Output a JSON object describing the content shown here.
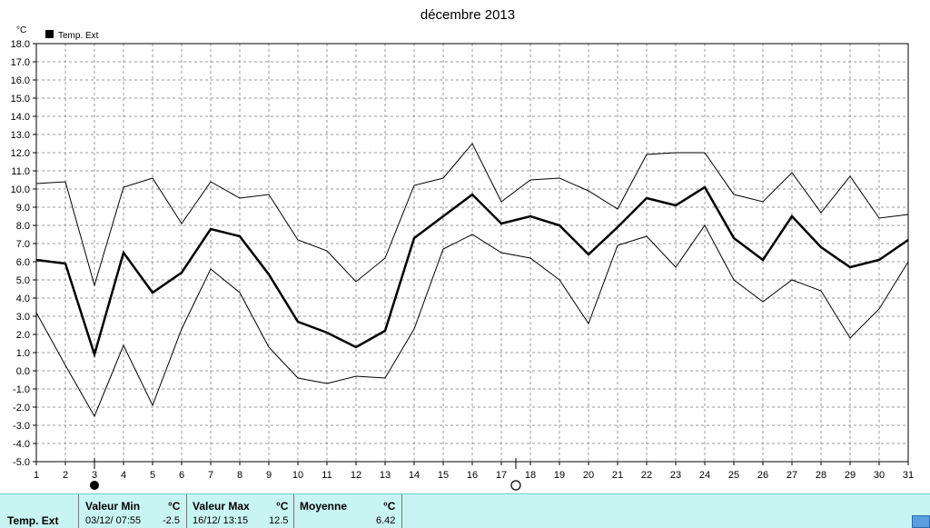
{
  "chart_data": {
    "type": "line",
    "title": "décembre 2013",
    "ylabel": "°C",
    "legend": "Temp. Ext",
    "legend_position": "top-left",
    "grid": true,
    "ylim": [
      -5.0,
      18.0
    ],
    "y_ticks": [
      "18.0",
      "17.0",
      "16.0",
      "15.0",
      "14.0",
      "13.0",
      "12.0",
      "11.0",
      "10.0",
      "9.0",
      "8.0",
      "7.0",
      "6.0",
      "5.0",
      "4.0",
      "3.0",
      "2.0",
      "1.0",
      "0.0",
      "-1.0",
      "-2.0",
      "-3.0",
      "-4.0",
      "-5.0"
    ],
    "x": [
      1,
      2,
      3,
      4,
      5,
      6,
      7,
      8,
      9,
      10,
      11,
      12,
      13,
      14,
      15,
      16,
      17,
      18,
      19,
      20,
      21,
      22,
      23,
      24,
      25,
      26,
      27,
      28,
      29,
      30,
      31
    ],
    "series": [
      {
        "values": [
          10.3,
          10.4,
          4.7,
          10.1,
          10.6,
          8.1,
          10.4,
          9.5,
          9.7,
          7.2,
          6.6,
          4.9,
          6.2,
          10.2,
          10.6,
          12.5,
          9.3,
          10.5,
          10.6,
          9.9,
          8.9,
          11.9,
          12.0,
          12.0,
          9.7,
          9.3,
          10.9,
          8.7,
          10.7,
          8.4,
          8.6
        ],
        "color": "#000000",
        "width": 1
      },
      {
        "values": [
          6.1,
          5.9,
          0.9,
          6.5,
          4.3,
          5.4,
          7.8,
          7.4,
          5.3,
          2.7,
          2.1,
          1.3,
          2.2,
          7.3,
          8.5,
          9.7,
          8.1,
          8.5,
          8.0,
          6.4,
          7.9,
          9.5,
          9.1,
          10.1,
          7.3,
          6.1,
          8.5,
          6.8,
          5.7,
          6.1,
          7.2
        ],
        "color": "#000000",
        "width": 2.5
      },
      {
        "values": [
          3.2,
          0.3,
          -2.5,
          1.4,
          -1.9,
          2.3,
          5.6,
          4.3,
          1.3,
          -0.4,
          -0.7,
          -0.3,
          -0.4,
          2.3,
          6.7,
          7.5,
          6.5,
          6.2,
          5.0,
          2.6,
          6.9,
          7.4,
          5.7,
          8.0,
          5.0,
          3.8,
          5.0,
          4.4,
          1.8,
          3.4,
          6.0
        ],
        "color": "#000000",
        "width": 1
      }
    ],
    "moon_markers": [
      {
        "x": 3,
        "phase": "new-moon"
      },
      {
        "x": 17.5,
        "phase": "full-moon"
      }
    ]
  },
  "stats": {
    "row_label": "Temp. Ext",
    "min": {
      "header": "Valeur Min",
      "unit": "°C",
      "datetime": "03/12/  07:55",
      "value": "-2.5"
    },
    "max": {
      "header": "Valeur Max",
      "unit": "°C",
      "datetime": "16/12/  13:15",
      "value": "12.5"
    },
    "avg": {
      "header": "Moyenne",
      "unit": "°C",
      "value": "6.42"
    }
  }
}
